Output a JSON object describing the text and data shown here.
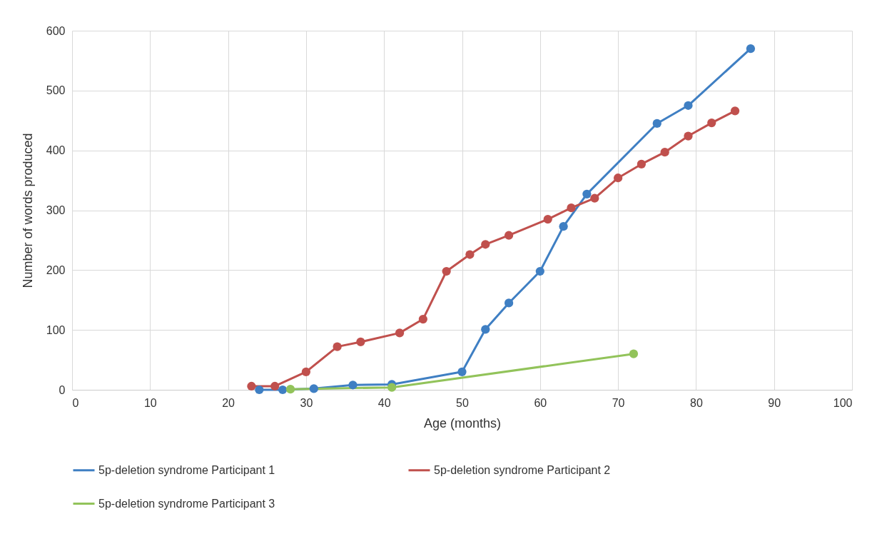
{
  "chart_data": {
    "type": "line",
    "xlabel": "Age (months)",
    "ylabel": "Number of words produced",
    "xlim": [
      0,
      100
    ],
    "xticks": [
      0,
      10,
      20,
      30,
      40,
      50,
      60,
      70,
      80,
      90,
      100
    ],
    "ylim": [
      0,
      600
    ],
    "yticks": [
      0,
      100,
      200,
      300,
      400,
      500,
      600
    ],
    "grid": true,
    "legend": "bottom",
    "marker": "circle",
    "line_style": "solid",
    "series": [
      {
        "name": "5p-deletion syndrome Participant 1",
        "color": "#3f7fc3",
        "x": [
          24,
          27,
          31,
          36,
          41,
          50,
          53,
          56,
          60,
          63,
          66,
          75,
          79,
          87
        ],
        "values": [
          0,
          0,
          2,
          8,
          9,
          30,
          101,
          145,
          198,
          273,
          327,
          445,
          475,
          570
        ]
      },
      {
        "name": "5p-deletion syndrome Participant 2",
        "color": "#c0504d",
        "x": [
          23,
          26,
          30,
          34,
          37,
          42,
          45,
          48,
          51,
          53,
          56,
          61,
          64,
          67,
          70,
          73,
          76,
          79,
          82,
          85
        ],
        "values": [
          6,
          6,
          30,
          72,
          80,
          95,
          118,
          198,
          226,
          243,
          258,
          285,
          304,
          320,
          354,
          377,
          397,
          424,
          446,
          466
        ]
      },
      {
        "name": "5p-deletion syndrome Participant 3",
        "color": "#92c35a",
        "x": [
          28,
          41,
          72
        ],
        "values": [
          1,
          4,
          60
        ]
      }
    ]
  }
}
